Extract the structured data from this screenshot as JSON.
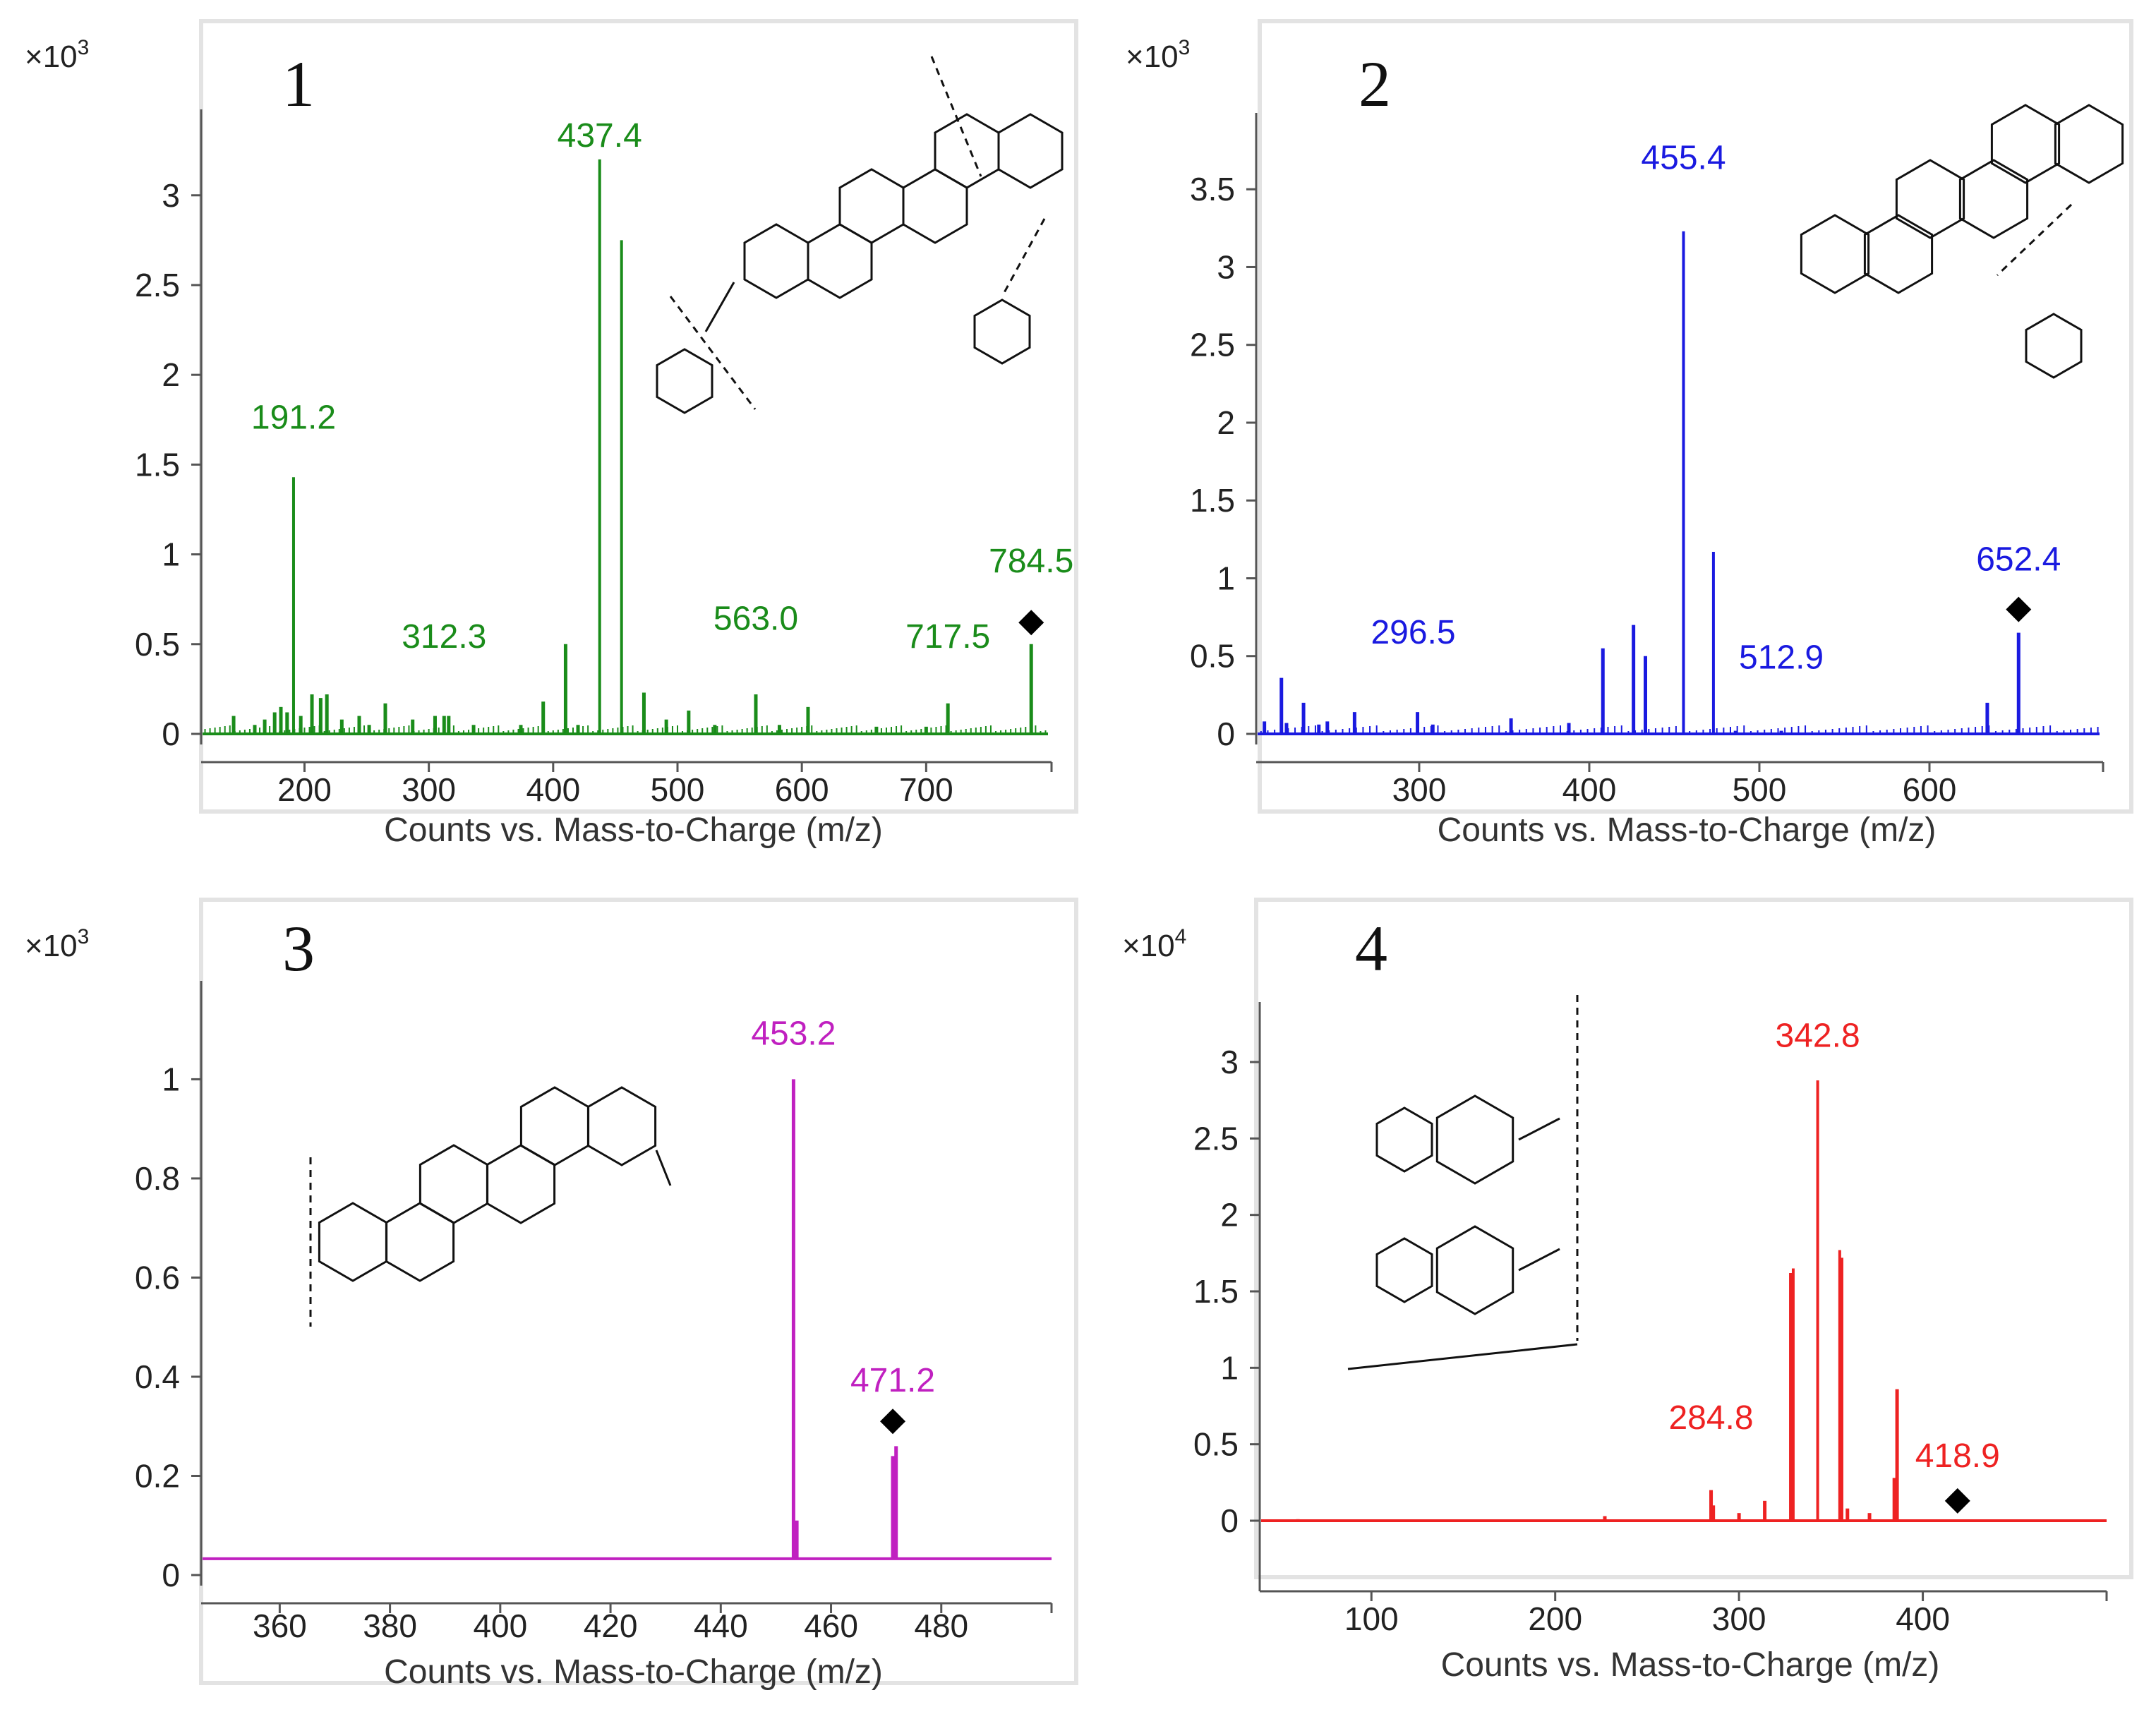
{
  "figure": {
    "panels": [
      {
        "label": "1",
        "multiplier_base": "×10",
        "multiplier_exp": "3"
      },
      {
        "label": "2",
        "multiplier_base": "×10",
        "multiplier_exp": "3"
      },
      {
        "label": "3",
        "multiplier_base": "×10",
        "multiplier_exp": "3"
      },
      {
        "label": "4",
        "multiplier_base": "×10",
        "multiplier_exp": "4"
      }
    ]
  },
  "chart_data": [
    {
      "type": "bar",
      "panel": "1",
      "title": "",
      "xlabel": "Counts vs. Mass-to-Charge (m/z)",
      "ylabel": "",
      "y_multiplier": "×10^3",
      "color": "#1a8c1a",
      "xlim": [
        118,
        798
      ],
      "ylim": [
        0,
        3.4
      ],
      "xticks": [
        200,
        300,
        400,
        500,
        600,
        700
      ],
      "yticks": [
        0,
        0.5,
        1,
        1.5,
        2,
        2.5,
        3
      ],
      "peaks": [
        {
          "mz": 143,
          "y": 0.1
        },
        {
          "mz": 160,
          "y": 0.05
        },
        {
          "mz": 168,
          "y": 0.08
        },
        {
          "mz": 176,
          "y": 0.12
        },
        {
          "mz": 181,
          "y": 0.15
        },
        {
          "mz": 186,
          "y": 0.12
        },
        {
          "mz": 191.2,
          "y": 1.43
        },
        {
          "mz": 197,
          "y": 0.1
        },
        {
          "mz": 206,
          "y": 0.22
        },
        {
          "mz": 213,
          "y": 0.2
        },
        {
          "mz": 218,
          "y": 0.22
        },
        {
          "mz": 230,
          "y": 0.08
        },
        {
          "mz": 244,
          "y": 0.1
        },
        {
          "mz": 252,
          "y": 0.05
        },
        {
          "mz": 265,
          "y": 0.17
        },
        {
          "mz": 287,
          "y": 0.08
        },
        {
          "mz": 305,
          "y": 0.1
        },
        {
          "mz": 312.3,
          "y": 0.1
        },
        {
          "mz": 316,
          "y": 0.1
        },
        {
          "mz": 336,
          "y": 0.05
        },
        {
          "mz": 374,
          "y": 0.05
        },
        {
          "mz": 392,
          "y": 0.18
        },
        {
          "mz": 410,
          "y": 0.5
        },
        {
          "mz": 420,
          "y": 0.05
        },
        {
          "mz": 437.4,
          "y": 3.2
        },
        {
          "mz": 455,
          "y": 2.75
        },
        {
          "mz": 473,
          "y": 0.23
        },
        {
          "mz": 491,
          "y": 0.08
        },
        {
          "mz": 509,
          "y": 0.13
        },
        {
          "mz": 530,
          "y": 0.05
        },
        {
          "mz": 563.0,
          "y": 0.22
        },
        {
          "mz": 582,
          "y": 0.05
        },
        {
          "mz": 605,
          "y": 0.15
        },
        {
          "mz": 660,
          "y": 0.04
        },
        {
          "mz": 700,
          "y": 0.04
        },
        {
          "mz": 717.5,
          "y": 0.17
        },
        {
          "mz": 784.5,
          "y": 0.5
        }
      ],
      "annotations": [
        {
          "text": "191.2",
          "mz": 191.2,
          "y": 1.7
        },
        {
          "text": "437.4",
          "mz": 437.4,
          "y": 3.27
        },
        {
          "text": "312.3",
          "mz": 312.3,
          "y": 0.48
        },
        {
          "text": "563.0",
          "mz": 563.0,
          "y": 0.58
        },
        {
          "text": "717.5",
          "mz": 717.5,
          "y": 0.48
        },
        {
          "text": "784.5",
          "mz": 784.5,
          "y": 0.9
        }
      ],
      "precursor": {
        "mz": 784.5,
        "y": 0.62
      }
    },
    {
      "type": "bar",
      "panel": "2",
      "title": "",
      "xlabel": "Counts vs. Mass-to-Charge (m/z)",
      "ylabel": "",
      "y_multiplier": "×10^3",
      "color": "#1a1ae0",
      "xlim": [
        205,
        700
      ],
      "ylim": [
        0,
        3.9
      ],
      "xticks": [
        300,
        400,
        500,
        600
      ],
      "yticks": [
        0,
        0.5,
        1,
        1.5,
        2,
        2.5,
        3,
        3.5
      ],
      "peaks": [
        {
          "mz": 209,
          "y": 0.08
        },
        {
          "mz": 219,
          "y": 0.36
        },
        {
          "mz": 222,
          "y": 0.07
        },
        {
          "mz": 232,
          "y": 0.2
        },
        {
          "mz": 241,
          "y": 0.06
        },
        {
          "mz": 246,
          "y": 0.08
        },
        {
          "mz": 262,
          "y": 0.14
        },
        {
          "mz": 299,
          "y": 0.14
        },
        {
          "mz": 308,
          "y": 0.06
        },
        {
          "mz": 354,
          "y": 0.1
        },
        {
          "mz": 388,
          "y": 0.07
        },
        {
          "mz": 408,
          "y": 0.55
        },
        {
          "mz": 426,
          "y": 0.7
        },
        {
          "mz": 433,
          "y": 0.5
        },
        {
          "mz": 455.4,
          "y": 3.23
        },
        {
          "mz": 473,
          "y": 1.17
        },
        {
          "mz": 486,
          "y": 0.02
        },
        {
          "mz": 512.9,
          "y": 0.02
        },
        {
          "mz": 634,
          "y": 0.2
        },
        {
          "mz": 652.4,
          "y": 0.65
        }
      ],
      "annotations": [
        {
          "text": "455.4",
          "mz": 455.4,
          "y": 3.63
        },
        {
          "text": "296.5",
          "mz": 296.5,
          "y": 0.58
        },
        {
          "text": "512.9",
          "mz": 512.9,
          "y": 0.42
        },
        {
          "text": "652.4",
          "mz": 652.4,
          "y": 1.05
        }
      ],
      "precursor": {
        "mz": 652.4,
        "y": 0.8
      }
    },
    {
      "type": "bar",
      "panel": "3",
      "title": "",
      "xlabel": "Counts vs. Mass-to-Charge (m/z)",
      "ylabel": "",
      "y_multiplier": "×10^3",
      "color": "#c020c0",
      "xlim": [
        346,
        500
      ],
      "ylim": [
        0,
        1.17
      ],
      "xticks": [
        360,
        380,
        400,
        420,
        440,
        460,
        480
      ],
      "yticks": [
        0,
        0.2,
        0.4,
        0.6,
        0.8,
        1
      ],
      "baseline": 0.033,
      "peaks": [
        {
          "mz": 453.2,
          "y": 1.0
        },
        {
          "mz": 453.8,
          "y": 0.11
        },
        {
          "mz": 471.2,
          "y": 0.24
        },
        {
          "mz": 471.8,
          "y": 0.26
        }
      ],
      "annotations": [
        {
          "text": "453.2",
          "mz": 453.2,
          "y": 1.07
        },
        {
          "text": "471.2",
          "mz": 471.2,
          "y": 0.37
        }
      ],
      "precursor": {
        "mz": 471.2,
        "y": 0.31
      }
    },
    {
      "type": "bar",
      "panel": "4",
      "title": "",
      "xlabel": "Counts vs. Mass-to-Charge (m/z)",
      "ylabel": "",
      "y_multiplier": "×10^4",
      "color": "#ee2222",
      "xlim": [
        40,
        500
      ],
      "ylim": [
        -0.28,
        3.3
      ],
      "xticks": [
        100,
        200,
        300,
        400
      ],
      "yticks": [
        0,
        0.5,
        1,
        1.5,
        2,
        2.5,
        3
      ],
      "peaks": [
        {
          "mz": 60,
          "y": 0.01
        },
        {
          "mz": 227,
          "y": 0.03
        },
        {
          "mz": 284.8,
          "y": 0.2
        },
        {
          "mz": 286,
          "y": 0.1
        },
        {
          "mz": 300,
          "y": 0.05
        },
        {
          "mz": 314,
          "y": 0.13
        },
        {
          "mz": 328,
          "y": 1.62
        },
        {
          "mz": 329.5,
          "y": 1.65
        },
        {
          "mz": 342.8,
          "y": 2.88
        },
        {
          "mz": 354.8,
          "y": 1.77
        },
        {
          "mz": 356,
          "y": 1.72
        },
        {
          "mz": 359,
          "y": 0.08
        },
        {
          "mz": 371,
          "y": 0.05
        },
        {
          "mz": 384.5,
          "y": 0.28
        },
        {
          "mz": 386,
          "y": 0.86
        }
      ],
      "annotations": [
        {
          "text": "342.8",
          "mz": 342.8,
          "y": 3.1
        },
        {
          "text": "284.8",
          "mz": 284.8,
          "y": 0.6
        },
        {
          "text": "418.9",
          "mz": 418.9,
          "y": 0.35
        }
      ],
      "precursor": {
        "mz": 418.9,
        "y": 0.13
      }
    }
  ]
}
